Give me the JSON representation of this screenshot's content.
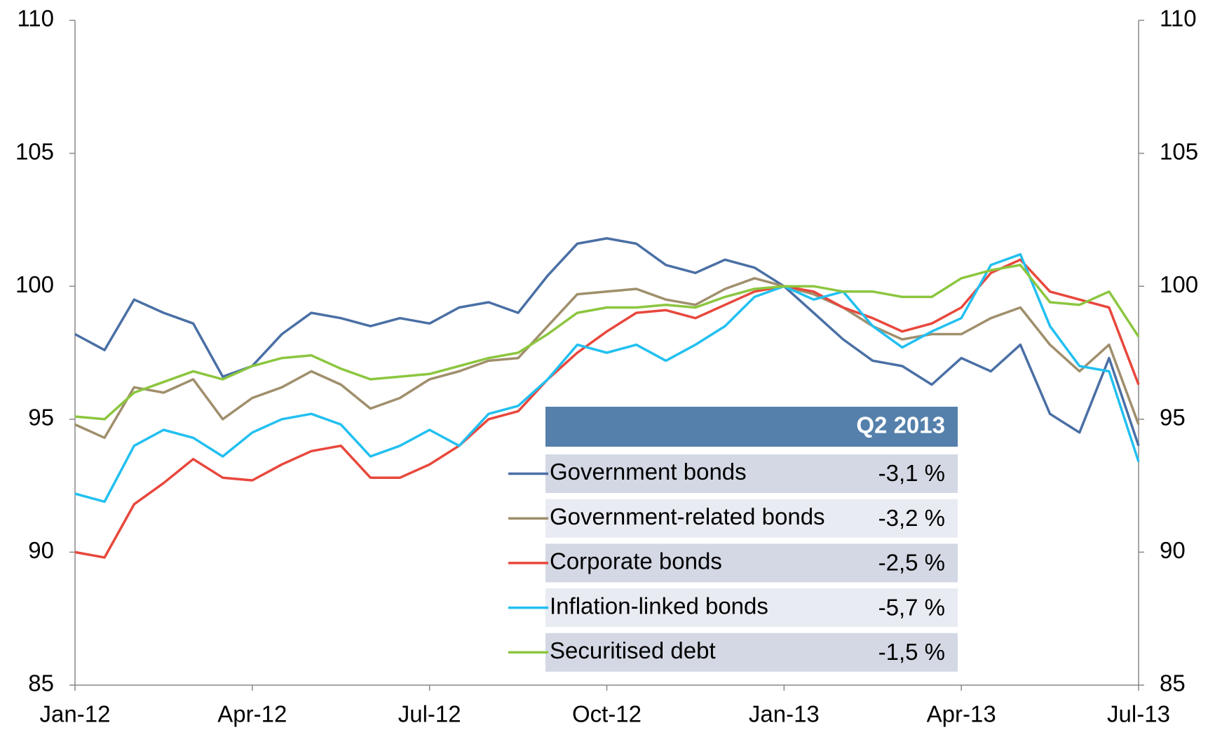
{
  "chart_data": {
    "type": "line",
    "xlim": [
      0,
      18
    ],
    "xticks": [
      {
        "value": 0,
        "label": "Jan-12"
      },
      {
        "value": 3,
        "label": "Apr-12"
      },
      {
        "value": 6,
        "label": "Jul-12"
      },
      {
        "value": 9,
        "label": "Oct-12"
      },
      {
        "value": 12,
        "label": "Jan-13"
      },
      {
        "value": 15,
        "label": "Apr-13"
      },
      {
        "value": 18,
        "label": "Jul-13"
      }
    ],
    "ylim": [
      85,
      110
    ],
    "yticks": [
      85,
      90,
      95,
      100,
      105,
      110
    ],
    "y2lim": [
      85,
      110
    ],
    "y2ticks": [
      85,
      90,
      95,
      100,
      105,
      110
    ],
    "legend_title": "Q2 2013",
    "x": [
      0,
      0.5,
      1,
      1.5,
      2,
      2.5,
      3,
      3.5,
      4,
      4.5,
      5,
      5.5,
      6,
      6.5,
      7,
      7.5,
      8,
      8.5,
      9,
      9.5,
      10,
      10.5,
      11,
      11.5,
      12,
      12.5,
      13,
      13.5,
      14,
      14.5,
      15,
      15.5,
      16,
      16.5,
      17,
      17.5,
      18
    ],
    "series": [
      {
        "name": "Government bonds",
        "q2_change": "-3,1 %",
        "color": "#4a6fa5",
        "values": [
          98.2,
          97.6,
          99.5,
          99.0,
          98.6,
          96.6,
          97.0,
          98.2,
          99.0,
          98.8,
          98.5,
          98.8,
          98.6,
          99.2,
          99.4,
          99.0,
          100.4,
          101.6,
          101.8,
          101.6,
          100.8,
          100.5,
          101.0,
          100.7,
          100.0,
          99.0,
          98.0,
          97.2,
          97.0,
          96.3,
          97.3,
          96.8,
          97.8,
          95.2,
          94.5,
          97.3,
          94.0
        ]
      },
      {
        "name": "Government-related bonds",
        "q2_change": "-3,2 %",
        "color": "#a08f6c",
        "values": [
          94.8,
          94.3,
          96.2,
          96.0,
          96.5,
          95.0,
          95.8,
          96.2,
          96.8,
          96.3,
          95.4,
          95.8,
          96.5,
          96.8,
          97.2,
          97.3,
          98.5,
          99.7,
          99.8,
          99.9,
          99.5,
          99.3,
          99.9,
          100.3,
          100.0,
          99.7,
          99.2,
          98.5,
          98.0,
          98.2,
          98.2,
          98.8,
          99.2,
          97.8,
          96.8,
          97.8,
          94.8
        ]
      },
      {
        "name": "Corporate bonds",
        "q2_change": "-2,5 %",
        "color": "#e8473c",
        "values": [
          90.0,
          89.8,
          91.8,
          92.6,
          93.5,
          92.8,
          92.7,
          93.3,
          93.8,
          94.0,
          92.8,
          92.8,
          93.3,
          94.0,
          95.0,
          95.3,
          96.5,
          97.5,
          98.3,
          99.0,
          99.1,
          98.8,
          99.3,
          99.8,
          100.0,
          99.8,
          99.2,
          98.8,
          98.3,
          98.6,
          99.2,
          100.5,
          101.0,
          99.8,
          99.5,
          99.2,
          96.3
        ]
      },
      {
        "name": "Inflation-linked bonds",
        "q2_change": "-5,7 %",
        "color": "#22c0f0",
        "values": [
          92.2,
          91.9,
          94.0,
          94.6,
          94.3,
          93.6,
          94.5,
          95.0,
          95.2,
          94.8,
          93.6,
          94.0,
          94.6,
          94.0,
          95.2,
          95.5,
          96.5,
          97.8,
          97.5,
          97.8,
          97.2,
          97.8,
          98.5,
          99.6,
          100.0,
          99.5,
          99.8,
          98.5,
          97.7,
          98.3,
          98.8,
          100.8,
          101.2,
          98.5,
          97.0,
          96.8,
          93.4
        ]
      },
      {
        "name": "Securitised debt",
        "q2_change": "-1,5 %",
        "color": "#8cc63f",
        "values": [
          95.1,
          95.0,
          96.0,
          96.4,
          96.8,
          96.5,
          97.0,
          97.3,
          97.4,
          96.9,
          96.5,
          96.6,
          96.7,
          97.0,
          97.3,
          97.5,
          98.2,
          99.0,
          99.2,
          99.2,
          99.3,
          99.2,
          99.6,
          99.9,
          100.0,
          100.0,
          99.8,
          99.8,
          99.6,
          99.6,
          100.3,
          100.6,
          100.8,
          99.4,
          99.3,
          99.8,
          98.1
        ]
      }
    ]
  }
}
